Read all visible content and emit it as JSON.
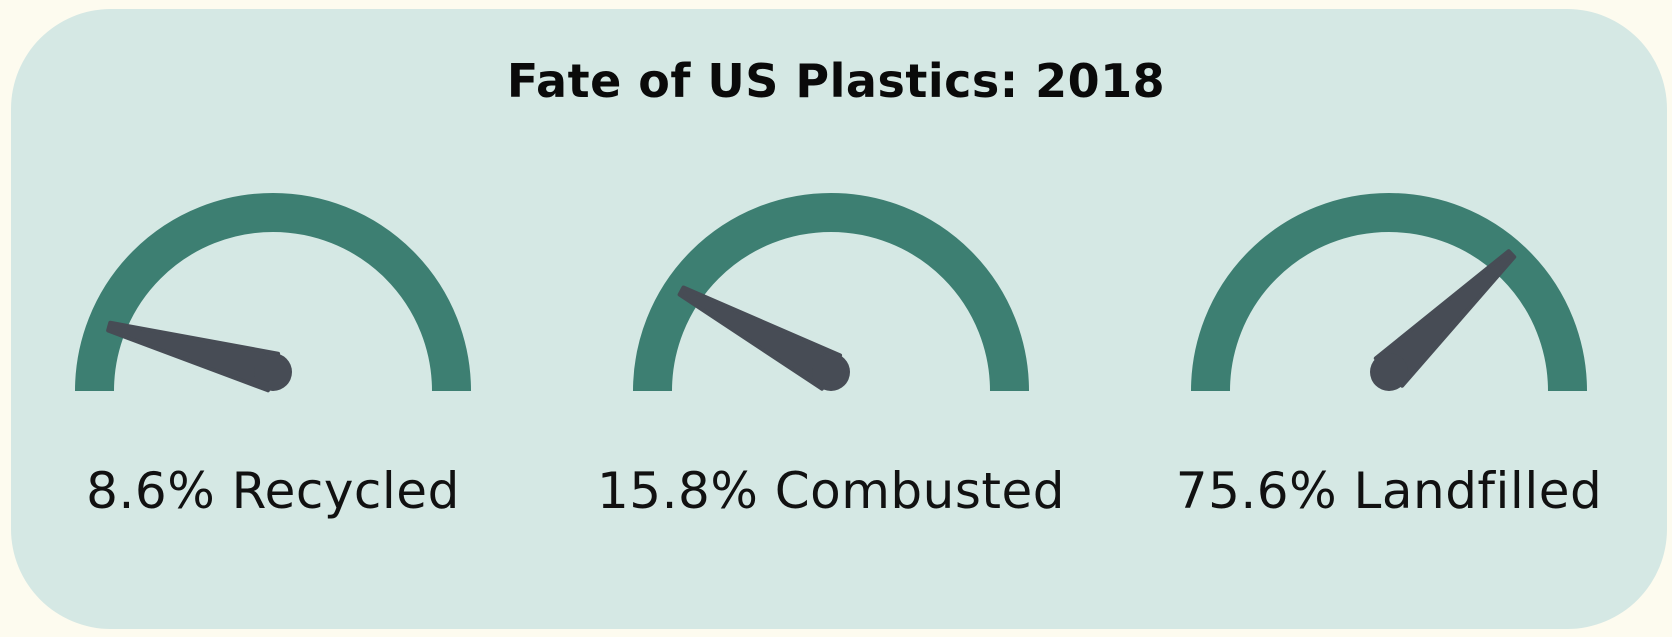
{
  "colors": {
    "page_background": "#fdfbef",
    "card_background": "#d5e8e4",
    "gauge_arc": "#3d7f72",
    "needle": "#474c55",
    "text": "#0a0a0a"
  },
  "chart_data": {
    "type": "gauge",
    "title": "Fate of US Plastics: 2018",
    "range": [
      0,
      100
    ],
    "unit": "%",
    "gauges": [
      {
        "label": "8.6% Recycled",
        "value": 8.6
      },
      {
        "label": "15.8% Combusted",
        "value": 15.8
      },
      {
        "label": "75.6% Landfilled",
        "value": 75.6
      }
    ]
  }
}
